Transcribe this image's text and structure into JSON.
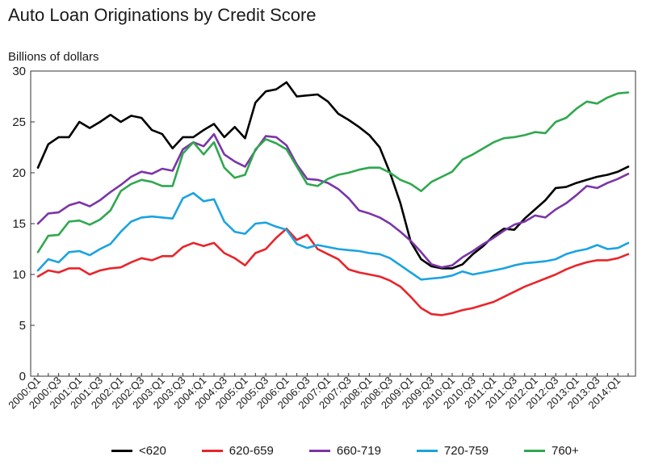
{
  "chart_data": {
    "type": "line",
    "title": "Auto Loan Originations by Credit Score",
    "ylabel": "Billions of dollars",
    "xlabel": "",
    "ylim": [
      0,
      30
    ],
    "yticks": [
      0,
      5,
      10,
      15,
      20,
      25,
      30
    ],
    "grid": false,
    "legend_position": "bottom",
    "x": [
      "2000:Q1",
      "2000:Q2",
      "2000:Q3",
      "2000:Q4",
      "2001:Q1",
      "2001:Q2",
      "2001:Q3",
      "2001:Q4",
      "2002:Q1",
      "2002:Q2",
      "2002:Q3",
      "2002:Q4",
      "2003:Q1",
      "2003:Q2",
      "2003:Q3",
      "2003:Q4",
      "2004:Q1",
      "2004:Q2",
      "2004:Q3",
      "2004:Q4",
      "2005:Q1",
      "2005:Q2",
      "2005:Q3",
      "2005:Q4",
      "2006:Q1",
      "2006:Q2",
      "2006:Q3",
      "2006:Q4",
      "2007:Q1",
      "2007:Q2",
      "2007:Q3",
      "2007:Q4",
      "2008:Q1",
      "2008:Q2",
      "2008:Q3",
      "2008:Q4",
      "2009:Q1",
      "2009:Q2",
      "2009:Q3",
      "2009:Q4",
      "2010:Q1",
      "2010:Q2",
      "2010:Q3",
      "2010:Q4",
      "2011:Q1",
      "2011:Q2",
      "2011:Q3",
      "2011:Q4",
      "2012:Q1",
      "2012:Q2",
      "2012:Q3",
      "2012:Q4",
      "2013:Q1",
      "2013:Q2",
      "2013:Q3",
      "2013:Q4",
      "2014:Q1",
      "2014:Q2"
    ],
    "tick_labels": [
      "2000:Q1",
      "2000:Q3",
      "2001:Q1",
      "2001:Q3",
      "2002:Q1",
      "2002:Q3",
      "2003:Q1",
      "2003:Q3",
      "2004:Q1",
      "2004:Q3",
      "2005:Q1",
      "2005:Q3",
      "2006:Q1",
      "2006:Q3",
      "2007:Q1",
      "2007:Q3",
      "2008:Q1",
      "2008:Q3",
      "2009:Q1",
      "2009:Q3",
      "2010:Q1",
      "2010:Q3",
      "2011:Q1",
      "2011:Q3",
      "2012:Q1",
      "2012:Q3",
      "2013:Q1",
      "2013:Q3",
      "2014:Q1"
    ],
    "series": [
      {
        "name": "<620",
        "color": "#000000",
        "values": [
          20.5,
          22.8,
          23.5,
          23.5,
          25.0,
          24.4,
          25.0,
          25.7,
          25.0,
          25.6,
          25.4,
          24.2,
          23.8,
          22.4,
          23.5,
          23.5,
          24.2,
          24.8,
          23.5,
          24.5,
          23.4,
          26.9,
          28.0,
          28.2,
          28.9,
          27.5,
          27.6,
          27.7,
          27.0,
          25.8,
          25.2,
          24.5,
          23.7,
          22.5,
          20.0,
          17.0,
          13.2,
          11.5,
          10.8,
          10.6,
          10.6,
          11.0,
          12.0,
          12.8,
          13.8,
          14.5,
          14.4,
          15.5,
          16.4,
          17.3,
          18.5,
          18.6,
          19.0,
          19.3,
          19.6,
          19.8,
          20.1,
          20.6
        ]
      },
      {
        "name": "620-659",
        "color": "#e8252b",
        "values": [
          9.8,
          10.4,
          10.2,
          10.6,
          10.6,
          10.0,
          10.4,
          10.6,
          10.7,
          11.2,
          11.6,
          11.4,
          11.8,
          11.8,
          12.7,
          13.1,
          12.8,
          13.1,
          12.1,
          11.6,
          10.9,
          12.1,
          12.5,
          13.6,
          14.5,
          13.4,
          13.9,
          12.5,
          12.0,
          11.5,
          10.5,
          10.2,
          10.0,
          9.8,
          9.4,
          8.8,
          7.8,
          6.7,
          6.1,
          6.0,
          6.2,
          6.5,
          6.7,
          7.0,
          7.3,
          7.8,
          8.3,
          8.8,
          9.2,
          9.6,
          10.0,
          10.5,
          10.9,
          11.2,
          11.4,
          11.4,
          11.6,
          12.0
        ]
      },
      {
        "name": "660-719",
        "color": "#7b35a8",
        "values": [
          15.0,
          16.0,
          16.1,
          16.8,
          17.1,
          16.7,
          17.3,
          18.1,
          18.8,
          19.6,
          20.1,
          19.9,
          20.4,
          20.2,
          22.3,
          23.0,
          22.6,
          23.8,
          21.8,
          21.1,
          20.6,
          22.2,
          23.6,
          23.5,
          22.7,
          20.8,
          19.4,
          19.3,
          19.0,
          18.4,
          17.5,
          16.3,
          16.0,
          15.6,
          15.0,
          14.2,
          13.3,
          12.2,
          11.0,
          10.7,
          10.9,
          11.7,
          12.3,
          13.0,
          13.6,
          14.3,
          14.9,
          15.2,
          15.8,
          15.6,
          16.4,
          17.0,
          17.8,
          18.7,
          18.5,
          19.0,
          19.4,
          19.9
        ]
      },
      {
        "name": "720-759",
        "color": "#1ba3e0",
        "values": [
          10.4,
          11.5,
          11.2,
          12.2,
          12.3,
          11.9,
          12.5,
          13.0,
          14.2,
          15.2,
          15.6,
          15.7,
          15.6,
          15.5,
          17.5,
          18.0,
          17.2,
          17.4,
          15.2,
          14.2,
          14.0,
          15.0,
          15.1,
          14.7,
          14.4,
          13.0,
          12.6,
          12.9,
          12.7,
          12.5,
          12.4,
          12.3,
          12.1,
          12.0,
          11.6,
          10.9,
          10.2,
          9.5,
          9.6,
          9.7,
          9.9,
          10.3,
          10.0,
          10.2,
          10.4,
          10.6,
          10.9,
          11.1,
          11.2,
          11.3,
          11.5,
          12.0,
          12.3,
          12.5,
          12.9,
          12.5,
          12.6,
          13.1
        ]
      },
      {
        "name": "760+",
        "color": "#2fa84e",
        "values": [
          12.2,
          13.8,
          13.9,
          15.2,
          15.3,
          14.9,
          15.4,
          16.3,
          18.2,
          18.9,
          19.3,
          19.1,
          18.7,
          18.7,
          21.9,
          23.0,
          21.8,
          23.0,
          20.5,
          19.5,
          19.8,
          22.3,
          23.3,
          22.9,
          22.3,
          20.6,
          18.9,
          18.7,
          19.4,
          19.8,
          20.0,
          20.3,
          20.5,
          20.5,
          20.0,
          19.3,
          18.9,
          18.2,
          19.1,
          19.6,
          20.1,
          21.3,
          21.8,
          22.4,
          23.0,
          23.4,
          23.5,
          23.7,
          24.0,
          23.9,
          25.0,
          25.4,
          26.3,
          27.0,
          26.8,
          27.4,
          27.8,
          27.9
        ]
      }
    ]
  }
}
